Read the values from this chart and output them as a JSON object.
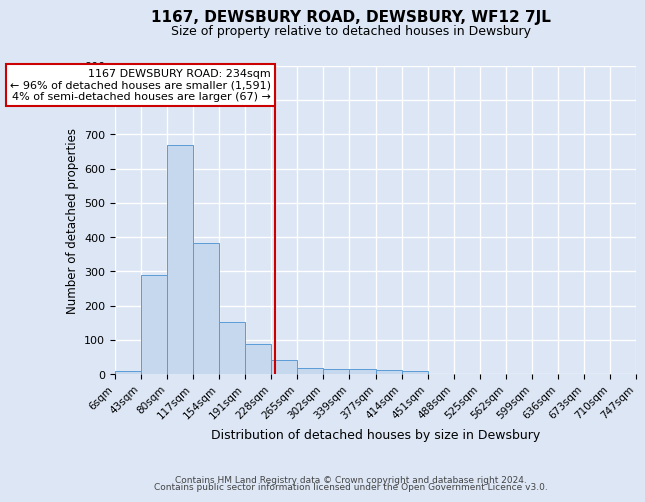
{
  "title": "1167, DEWSBURY ROAD, DEWSBURY, WF12 7JL",
  "subtitle": "Size of property relative to detached houses in Dewsbury",
  "xlabel": "Distribution of detached houses by size in Dewsbury",
  "ylabel": "Number of detached properties",
  "bar_color": "#c5d8ee",
  "bar_edge_color": "#5b9bd5",
  "background_color": "#dce6f5",
  "grid_color": "#ffffff",
  "bin_edges": [
    6,
    43,
    80,
    117,
    154,
    191,
    228,
    265,
    302,
    339,
    377,
    414,
    451,
    488,
    525,
    562,
    599,
    636,
    673,
    710,
    747
  ],
  "bin_labels": [
    "6sqm",
    "43sqm",
    "80sqm",
    "117sqm",
    "154sqm",
    "191sqm",
    "228sqm",
    "265sqm",
    "302sqm",
    "339sqm",
    "377sqm",
    "414sqm",
    "451sqm",
    "488sqm",
    "525sqm",
    "562sqm",
    "599sqm",
    "636sqm",
    "673sqm",
    "710sqm",
    "747sqm"
  ],
  "bar_heights": [
    10,
    290,
    670,
    383,
    153,
    87,
    42,
    17,
    15,
    15,
    12,
    8,
    0,
    0,
    0,
    0,
    0,
    0,
    0,
    0
  ],
  "vline_x": 234,
  "vline_color": "#cc0000",
  "ylim": [
    0,
    900
  ],
  "yticks": [
    0,
    100,
    200,
    300,
    400,
    500,
    600,
    700,
    800,
    900
  ],
  "annotation_title": "1167 DEWSBURY ROAD: 234sqm",
  "annotation_line1": "← 96% of detached houses are smaller (1,591)",
  "annotation_line2": "4% of semi-detached houses are larger (67) →",
  "annotation_box_color": "#ffffff",
  "annotation_box_edge": "#cc0000",
  "footer_line1": "Contains HM Land Registry data © Crown copyright and database right 2024.",
  "footer_line2": "Contains public sector information licensed under the Open Government Licence v3.0."
}
